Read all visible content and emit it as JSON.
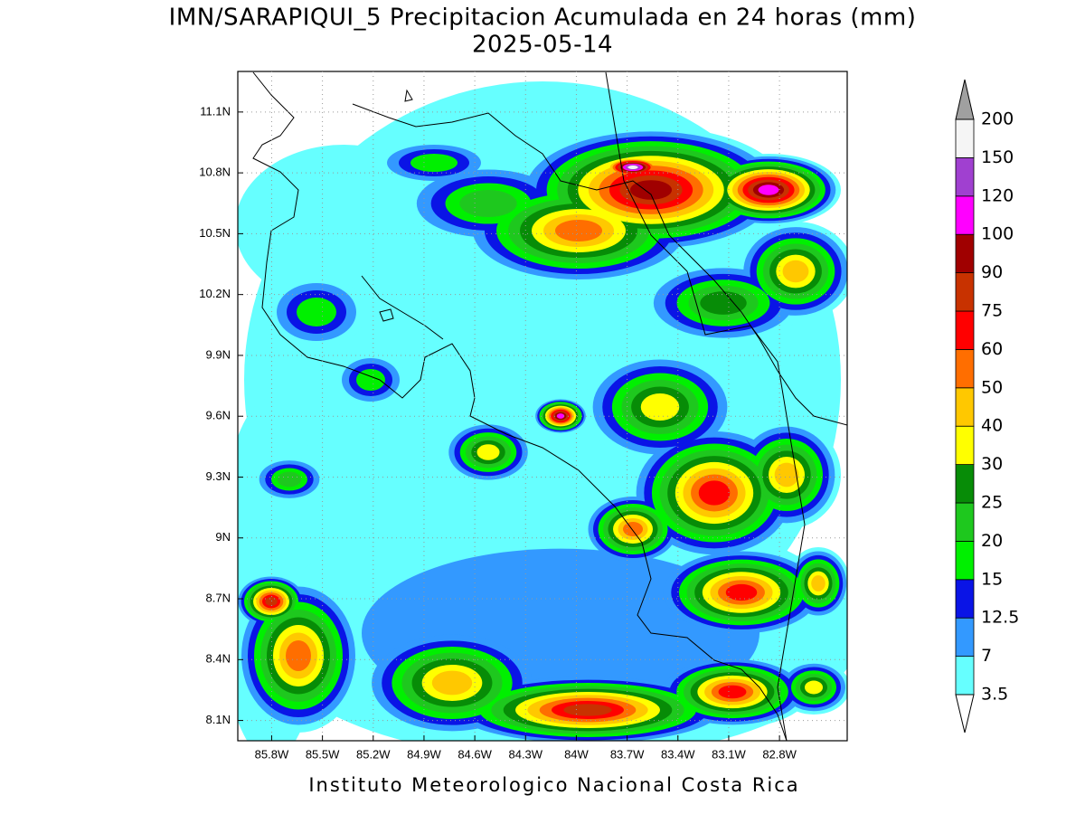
{
  "title": "IMN/SARAPIQUI_5 Precipitacion Acumulada en 24 horas (mm)",
  "subtitle": "2025-05-14",
  "map": {
    "lon_range": [
      -86.0,
      -82.4
    ],
    "lat_range": [
      8.0,
      11.3
    ],
    "lon_ticks": [
      {
        "value": -85.8,
        "label": "85.8W"
      },
      {
        "value": -85.5,
        "label": "85.5W"
      },
      {
        "value": -85.2,
        "label": "85.2W"
      },
      {
        "value": -84.9,
        "label": "84.9W"
      },
      {
        "value": -84.6,
        "label": "84.6W"
      },
      {
        "value": -84.3,
        "label": "84.3W"
      },
      {
        "value": -84.0,
        "label": "84W"
      },
      {
        "value": -83.7,
        "label": "83.7W"
      },
      {
        "value": -83.4,
        "label": "83.4W"
      },
      {
        "value": -83.1,
        "label": "83.1W"
      },
      {
        "value": -82.8,
        "label": "82.8W"
      }
    ],
    "lat_ticks": [
      {
        "value": 11.1,
        "label": "11.1N"
      },
      {
        "value": 10.8,
        "label": "10.8N"
      },
      {
        "value": 10.5,
        "label": "10.5N"
      },
      {
        "value": 10.2,
        "label": "10.2N"
      },
      {
        "value": 9.9,
        "label": "9.9N"
      },
      {
        "value": 9.6,
        "label": "9.6N"
      },
      {
        "value": 9.3,
        "label": "9.3N"
      },
      {
        "value": 9.0,
        "label": "9N"
      },
      {
        "value": 8.7,
        "label": "8.7N"
      },
      {
        "value": 8.4,
        "label": "8.4N"
      },
      {
        "value": 8.1,
        "label": "8.1N"
      }
    ],
    "grid": true
  },
  "colorbar": {
    "levels": [
      3.5,
      7,
      12.5,
      15,
      20,
      25,
      30,
      40,
      50,
      60,
      75,
      90,
      100,
      120,
      150,
      200
    ],
    "colors": [
      "#66ffff",
      "#3399ff",
      "#0a14e6",
      "#00f000",
      "#1ec81e",
      "#078c07",
      "#ffff00",
      "#ffc800",
      "#ff6e00",
      "#ff0000",
      "#c83200",
      "#a00000",
      "#ff00ff",
      "#a040d0",
      "#f5f5f5"
    ],
    "under_color": "#ffffff",
    "over_color": "#a0a0a0"
  },
  "footer": "Instituto Meteorologico Nacional Costa Rica"
}
